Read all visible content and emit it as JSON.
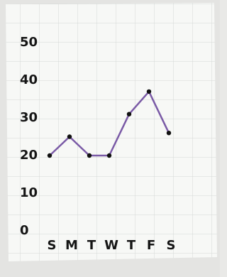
{
  "chart_data": {
    "type": "line",
    "categories": [
      "S",
      "M",
      "T",
      "W",
      "T",
      "F",
      "S"
    ],
    "values": [
      20,
      25,
      20,
      20,
      31,
      37,
      26
    ],
    "color": "#7a5aa6",
    "marker_color": "#111111",
    "ylim": [
      0,
      50
    ],
    "yticks": [
      0,
      10,
      20,
      30,
      40,
      50
    ]
  }
}
